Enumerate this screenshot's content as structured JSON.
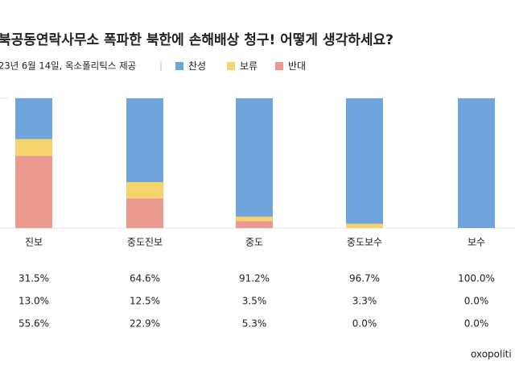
{
  "chart_data": {
    "type": "stacked_bar",
    "title": "북공동연락사무소 폭파한 북한에 손해배상 청구! 어떻게 생각하세요?",
    "subtitle": "23년 6월 14일, 옥소폴리틱스 제공",
    "source": "oxopoliti",
    "categories": [
      "진보",
      "중도진보",
      "중도",
      "중도보수",
      "보수"
    ],
    "ylim": [
      0,
      100
    ],
    "series": [
      {
        "name": "찬성",
        "color": "#6fa5dc",
        "values": [
          31.5,
          64.6,
          91.2,
          96.7,
          100.0
        ],
        "value_labels": [
          "31.5%",
          "64.6%",
          "91.2%",
          "96.7%",
          "100.0%"
        ]
      },
      {
        "name": "보류",
        "color": "#f5d46e",
        "values": [
          13.0,
          12.5,
          3.5,
          3.3,
          0.0
        ],
        "value_labels": [
          "13.0%",
          "12.5%",
          "3.5%",
          "3.3%",
          "0.0%"
        ]
      },
      {
        "name": "반대",
        "color": "#ec9a90",
        "values": [
          55.6,
          22.9,
          5.3,
          0.0,
          0.0
        ],
        "value_labels": [
          "55.6%",
          "22.9%",
          "5.3%",
          "0.0%",
          "0.0%"
        ]
      }
    ]
  }
}
